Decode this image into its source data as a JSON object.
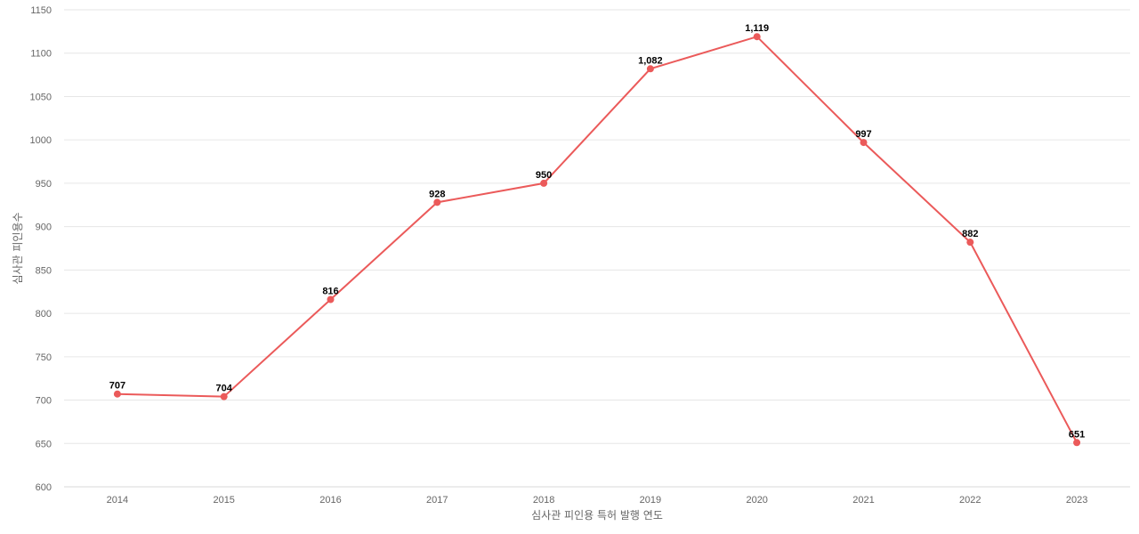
{
  "chart_data": {
    "type": "line",
    "title": "",
    "xlabel": "심사관 피인용 특허 발행 연도",
    "ylabel": "심사관 피인용수",
    "x": [
      "2014",
      "2015",
      "2016",
      "2017",
      "2018",
      "2019",
      "2020",
      "2021",
      "2022",
      "2023"
    ],
    "series": [
      {
        "values": [
          707,
          704,
          816,
          928,
          950,
          1082,
          1119,
          997,
          882,
          651
        ],
        "labels": [
          "707",
          "704",
          "816",
          "928",
          "950",
          "1,082",
          "1,119",
          "997",
          "882",
          "651"
        ],
        "color": "#eb5a5a"
      }
    ],
    "ylim": [
      600,
      1150
    ],
    "yticks": [
      "600",
      "650",
      "700",
      "750",
      "800",
      "850",
      "900",
      "950",
      "1000",
      "1050",
      "1100",
      "1150"
    ],
    "grid": true,
    "legend": "none"
  }
}
